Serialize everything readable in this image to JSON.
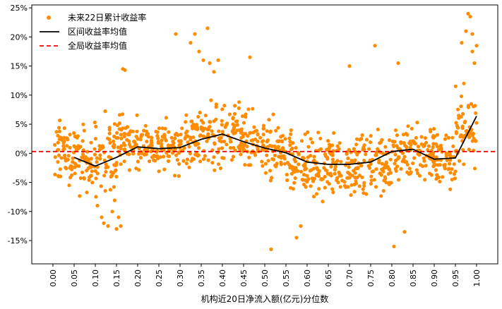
{
  "chart_data": {
    "type": "scatter",
    "xlabel": "机构近20日净流入额(亿元)分位数",
    "ylabel": "",
    "xlim": [
      -0.05,
      1.05
    ],
    "ylim": [
      -0.19,
      0.255
    ],
    "x_ticks": [
      0.0,
      0.05,
      0.1,
      0.15,
      0.2,
      0.25,
      0.3,
      0.35,
      0.4,
      0.45,
      0.5,
      0.55,
      0.6,
      0.65,
      0.7,
      0.75,
      0.8,
      0.85,
      0.9,
      0.95,
      1.0
    ],
    "x_tick_labels": [
      "0.00",
      "0.05",
      "0.10",
      "0.15",
      "0.20",
      "0.25",
      "0.30",
      "0.35",
      "0.40",
      "0.45",
      "0.50",
      "0.55",
      "0.60",
      "0.65",
      "0.70",
      "0.75",
      "0.80",
      "0.85",
      "0.90",
      "0.95",
      "1.00"
    ],
    "y_ticks": [
      -0.15,
      -0.1,
      -0.05,
      0.0,
      0.05,
      0.1,
      0.15,
      0.2,
      0.25
    ],
    "y_tick_labels": [
      "-15%",
      "-10%",
      "-5%",
      "0%",
      "5%",
      "10%",
      "15%",
      "20%",
      "25%"
    ],
    "legend_placement": "top-left",
    "grid": false,
    "series": [
      {
        "name": "未来22日累计收益率",
        "kind": "scatter",
        "color": "#FF8C00",
        "clusters": [
          {
            "x": [
              0.0,
              0.05
            ],
            "center": 0.0,
            "spread": 0.045
          },
          {
            "x": [
              0.05,
              0.1
            ],
            "center": -0.01,
            "spread": 0.05
          },
          {
            "x": [
              0.1,
              0.15
            ],
            "center": -0.005,
            "spread": 0.06
          },
          {
            "x": [
              0.15,
              0.2
            ],
            "center": 0.02,
            "spread": 0.04
          },
          {
            "x": [
              0.2,
              0.25
            ],
            "center": 0.015,
            "spread": 0.035
          },
          {
            "x": [
              0.25,
              0.3
            ],
            "center": 0.01,
            "spread": 0.035
          },
          {
            "x": [
              0.3,
              0.35
            ],
            "center": 0.025,
            "spread": 0.045
          },
          {
            "x": [
              0.35,
              0.4
            ],
            "center": 0.03,
            "spread": 0.05
          },
          {
            "x": [
              0.4,
              0.45
            ],
            "center": 0.03,
            "spread": 0.045
          },
          {
            "x": [
              0.45,
              0.5
            ],
            "center": 0.015,
            "spread": 0.045
          },
          {
            "x": [
              0.5,
              0.55
            ],
            "center": 0.005,
            "spread": 0.045
          },
          {
            "x": [
              0.55,
              0.6
            ],
            "center": -0.015,
            "spread": 0.045
          },
          {
            "x": [
              0.6,
              0.65
            ],
            "center": -0.025,
            "spread": 0.045
          },
          {
            "x": [
              0.65,
              0.7
            ],
            "center": -0.02,
            "spread": 0.045
          },
          {
            "x": [
              0.7,
              0.75
            ],
            "center": -0.02,
            "spread": 0.045
          },
          {
            "x": [
              0.75,
              0.8
            ],
            "center": -0.015,
            "spread": 0.045
          },
          {
            "x": [
              0.8,
              0.85
            ],
            "center": 0.0,
            "spread": 0.05
          },
          {
            "x": [
              0.85,
              0.9
            ],
            "center": 0.005,
            "spread": 0.045
          },
          {
            "x": [
              0.9,
              0.95
            ],
            "center": -0.01,
            "spread": 0.045
          },
          {
            "x": [
              0.95,
              1.0
            ],
            "center": 0.04,
            "spread": 0.06
          }
        ],
        "outliers": [
          {
            "x": 0.105,
            "y": -0.09
          },
          {
            "x": 0.115,
            "y": -0.11
          },
          {
            "x": 0.12,
            "y": -0.12
          },
          {
            "x": 0.13,
            "y": -0.125
          },
          {
            "x": 0.14,
            "y": -0.1
          },
          {
            "x": 0.15,
            "y": -0.13
          },
          {
            "x": 0.155,
            "y": -0.11
          },
          {
            "x": 0.16,
            "y": -0.125
          },
          {
            "x": 0.165,
            "y": 0.145
          },
          {
            "x": 0.17,
            "y": 0.143
          },
          {
            "x": 0.29,
            "y": 0.205
          },
          {
            "x": 0.325,
            "y": 0.19
          },
          {
            "x": 0.335,
            "y": 0.205
          },
          {
            "x": 0.345,
            "y": 0.175
          },
          {
            "x": 0.355,
            "y": 0.16
          },
          {
            "x": 0.365,
            "y": 0.215
          },
          {
            "x": 0.37,
            "y": 0.155
          },
          {
            "x": 0.38,
            "y": 0.14
          },
          {
            "x": 0.39,
            "y": 0.16
          },
          {
            "x": 0.465,
            "y": 0.165
          },
          {
            "x": 0.515,
            "y": -0.165
          },
          {
            "x": 0.575,
            "y": -0.145
          },
          {
            "x": 0.585,
            "y": -0.125
          },
          {
            "x": 0.7,
            "y": 0.15
          },
          {
            "x": 0.76,
            "y": 0.185
          },
          {
            "x": 0.805,
            "y": -0.16
          },
          {
            "x": 0.815,
            "y": 0.155
          },
          {
            "x": 0.83,
            "y": -0.135
          },
          {
            "x": 0.965,
            "y": 0.19
          },
          {
            "x": 0.975,
            "y": 0.21
          },
          {
            "x": 0.98,
            "y": 0.24
          },
          {
            "x": 0.985,
            "y": 0.235
          },
          {
            "x": 0.99,
            "y": 0.205
          },
          {
            "x": 0.99,
            "y": 0.175
          },
          {
            "x": 0.995,
            "y": 0.155
          },
          {
            "x": 1.0,
            "y": 0.185
          },
          {
            "x": 0.97,
            "y": 0.12
          }
        ]
      },
      {
        "name": "区间收益率均值",
        "kind": "line",
        "color": "#000000",
        "x": [
          0.05,
          0.1,
          0.15,
          0.2,
          0.25,
          0.3,
          0.35,
          0.4,
          0.45,
          0.5,
          0.55,
          0.6,
          0.65,
          0.7,
          0.75,
          0.8,
          0.85,
          0.9,
          0.95,
          1.0
        ],
        "y": [
          -0.007,
          -0.022,
          -0.007,
          0.011,
          0.008,
          0.01,
          0.024,
          0.033,
          0.02,
          0.009,
          0.001,
          -0.015,
          -0.019,
          -0.019,
          -0.015,
          0.003,
          0.007,
          -0.01,
          -0.008,
          0.064
        ]
      },
      {
        "name": "全局收益率均值",
        "kind": "hline",
        "color": "#FF0000",
        "y": 0.003
      }
    ]
  }
}
